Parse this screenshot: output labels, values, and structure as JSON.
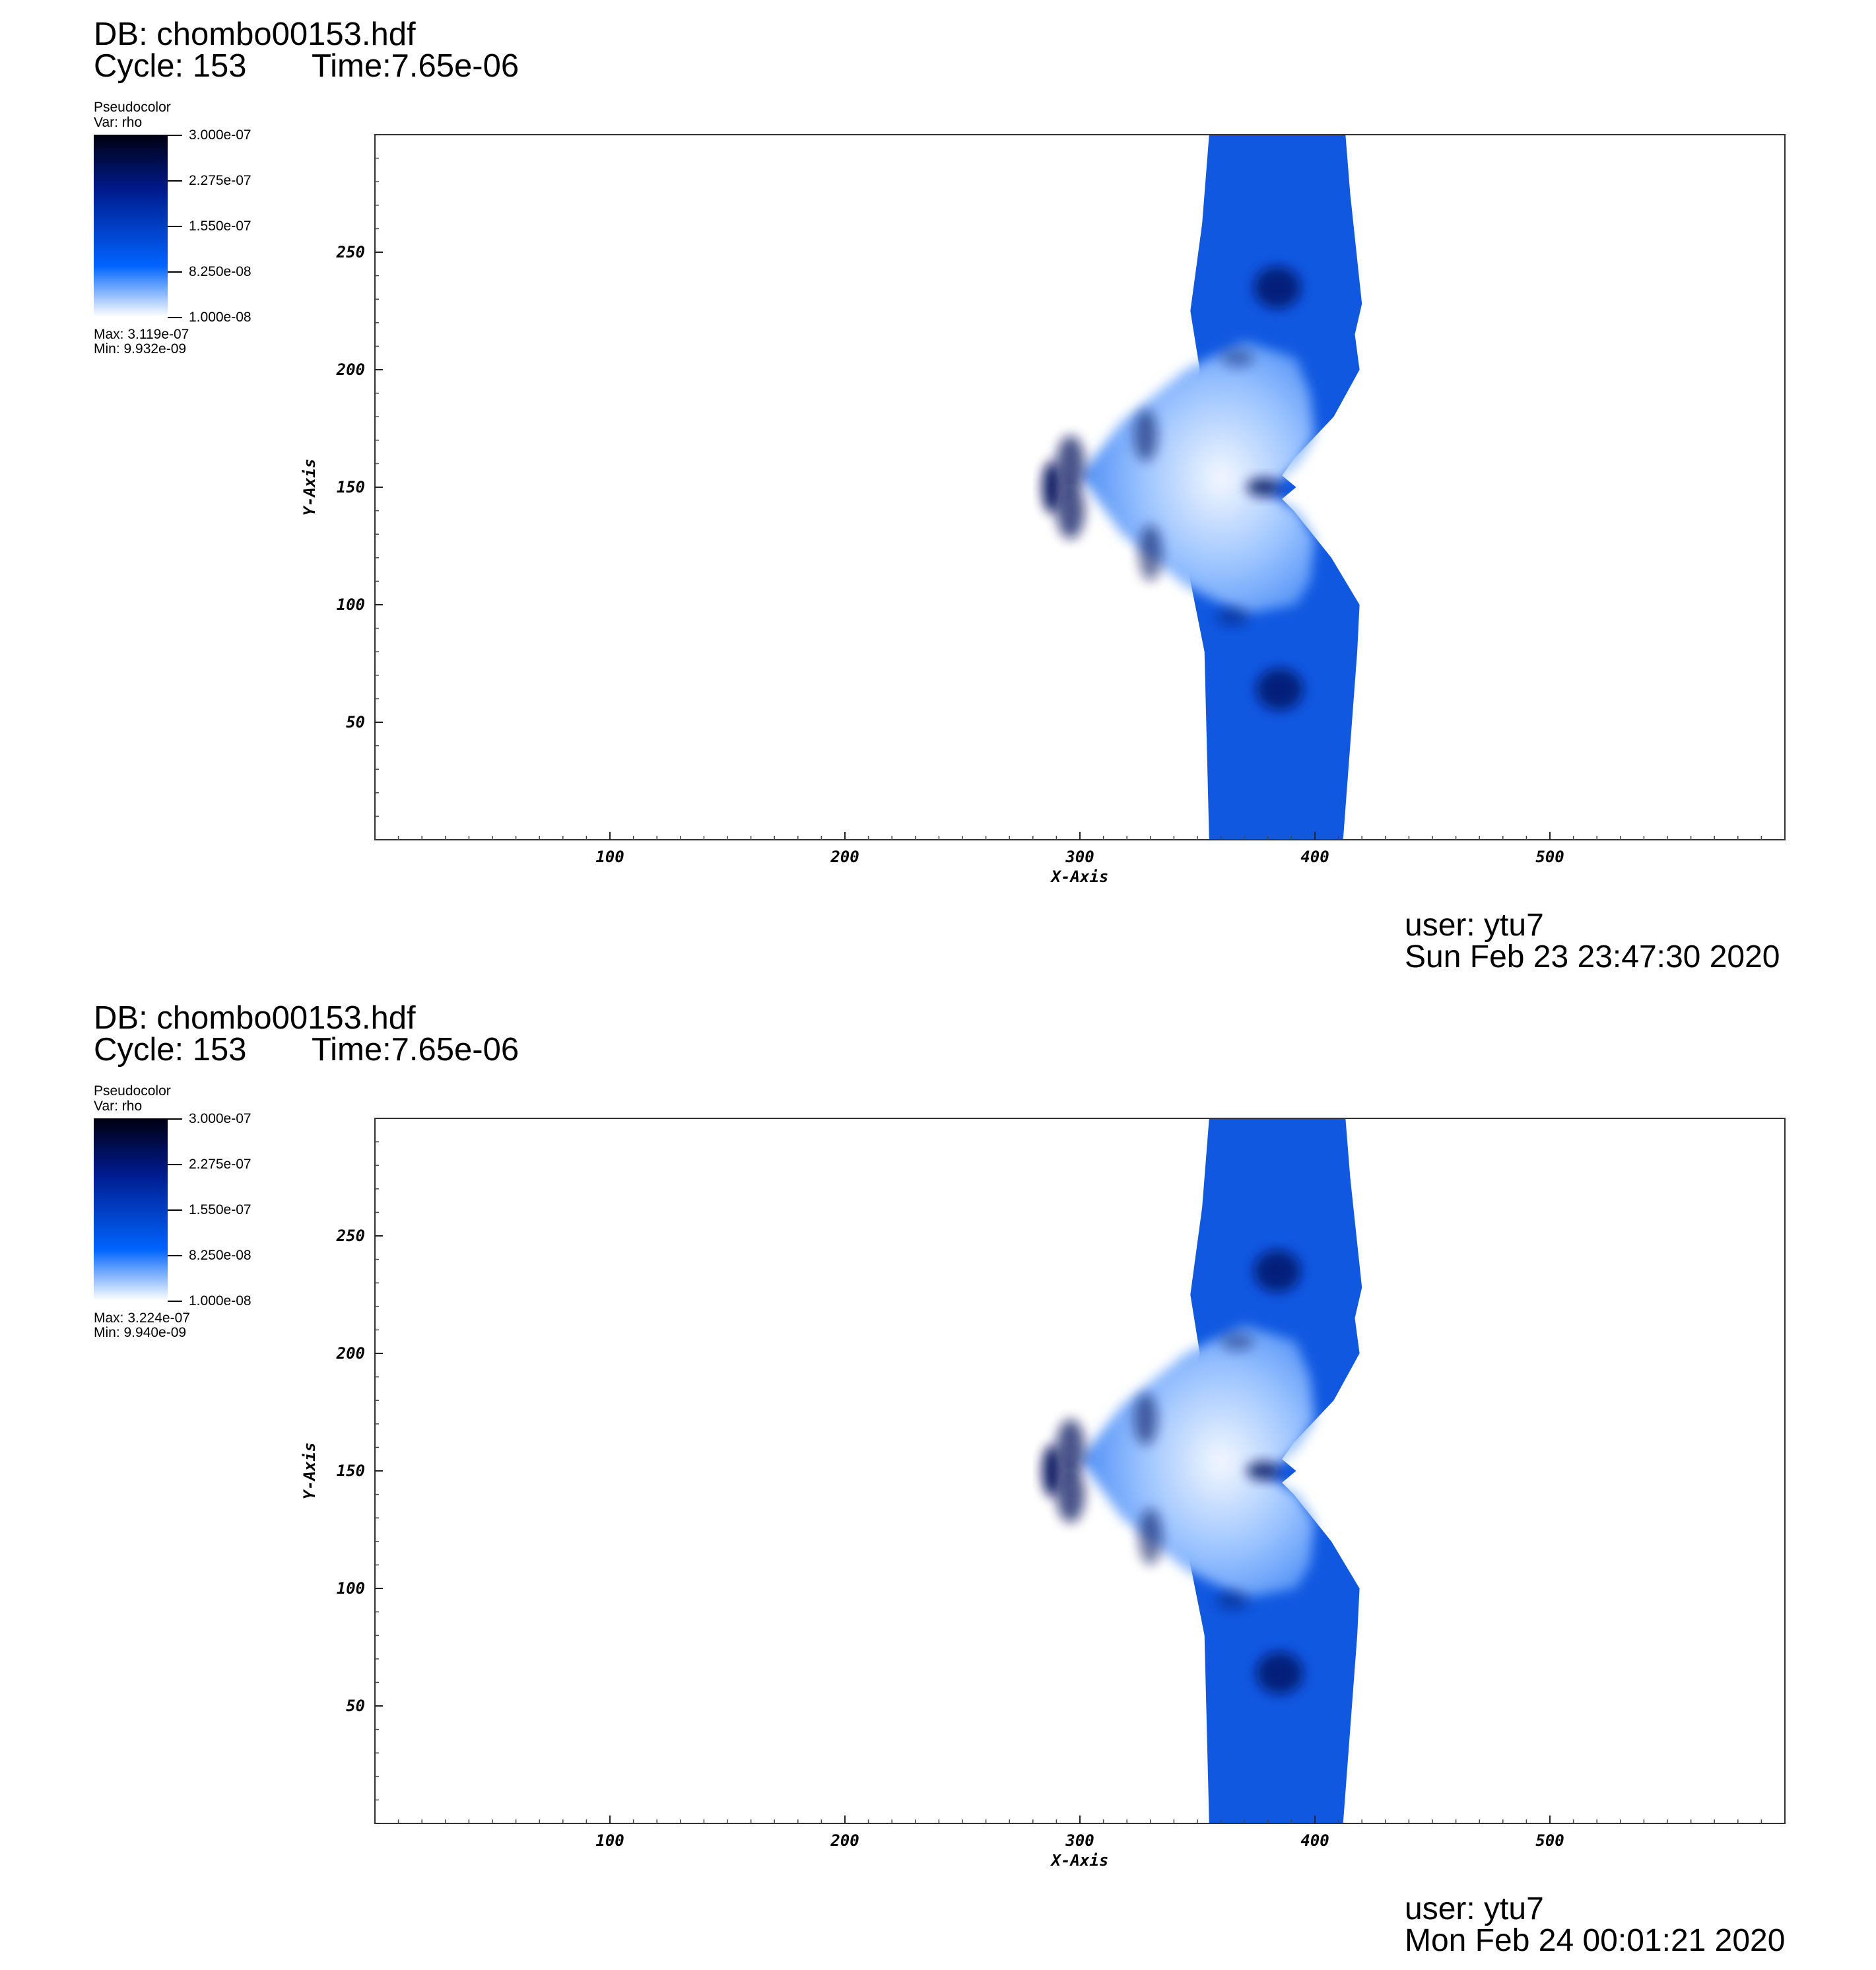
{
  "panels": [
    {
      "db": "DB: chombo00153.hdf",
      "cycle": "Cycle: 153",
      "time": "Time:7.65e-06",
      "legend": {
        "plot_type": "Pseudocolor",
        "var": "Var: rho",
        "ticks": [
          "3.000e-07",
          "2.275e-07",
          "1.550e-07",
          "8.250e-08",
          "1.000e-08"
        ],
        "max": "Max:  3.119e-07",
        "min": "Min:  9.932e-09"
      },
      "user": "user: ytu7",
      "date": "Sun Feb 23 23:47:30 2020"
    },
    {
      "db": "DB: chombo00153.hdf",
      "cycle": "Cycle: 153",
      "time": "Time:7.65e-06",
      "legend": {
        "plot_type": "Pseudocolor",
        "var": "Var: rho",
        "ticks": [
          "3.000e-07",
          "2.275e-07",
          "1.550e-07",
          "8.250e-08",
          "1.000e-08"
        ],
        "max": "Max:  3.224e-07",
        "min": "Min:  9.940e-09"
      },
      "user": "user: ytu7",
      "date": "Mon Feb 24 00:01:21 2020"
    }
  ],
  "colors": {
    "cmap_dark": "#000010",
    "cmap_navy": "#001a8c",
    "cmap_blue": "#0064ff",
    "cmap_white": "#ffffff",
    "region_fill": "#1058e0"
  },
  "chart_data": [
    {
      "type": "heatmap",
      "variable": "rho",
      "xlabel": "X-Axis",
      "ylabel": "Y-Axis",
      "xlim": [
        0,
        600
      ],
      "ylim": [
        0,
        300
      ],
      "xticks": [
        100,
        200,
        300,
        400,
        500
      ],
      "yticks": [
        50,
        100,
        150,
        200,
        250
      ],
      "color_range": [
        1e-08,
        3e-07
      ],
      "data_max": 3.119e-07,
      "data_min": 9.932e-09
    },
    {
      "type": "heatmap",
      "variable": "rho",
      "xlabel": "X-Axis",
      "ylabel": "Y-Axis",
      "xlim": [
        0,
        600
      ],
      "ylim": [
        0,
        300
      ],
      "xticks": [
        100,
        200,
        300,
        400,
        500
      ],
      "yticks": [
        50,
        100,
        150,
        200,
        250
      ],
      "color_range": [
        1e-08,
        3e-07
      ],
      "data_max": 3.224e-07,
      "data_min": 9.94e-09
    }
  ]
}
